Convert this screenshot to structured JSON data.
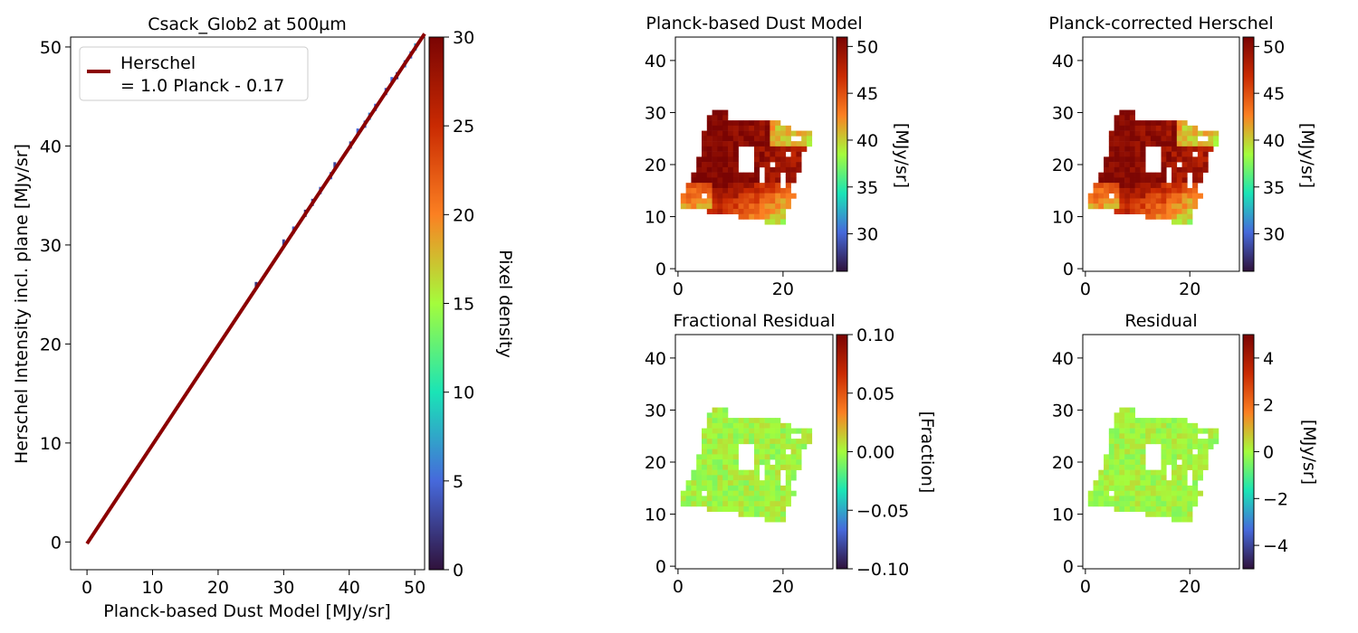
{
  "colormap_stops": [
    "#30123b",
    "#4669db",
    "#1ae4b6",
    "#a4fc3c",
    "#fb8022",
    "#c92a02",
    "#7a0403"
  ],
  "panel_bg": "#ffffff",
  "axes_color": "#000000",
  "chart_data": [
    {
      "type": "scatter",
      "title": "Csack_Glob2 at 500µm",
      "xlabel": "Planck-based Dust Model [MJy/sr]",
      "ylabel": "Herschel Intensity incl. plane [MJy/sr]",
      "xlim": [
        -2.5,
        51.5
      ],
      "ylim": [
        -2.8,
        51.0
      ],
      "xticks": [
        0,
        10,
        20,
        30,
        40,
        50
      ],
      "yticks": [
        0,
        10,
        20,
        30,
        40,
        50
      ],
      "fit_line": {
        "slope": 1.0,
        "intercept": -0.17,
        "x_range": [
          0,
          51.5
        ],
        "color": "#8b0000"
      },
      "legend": {
        "placement": "upper-left",
        "lines": [
          "Herschel",
          "= 1.0 Planck - 0.17"
        ]
      },
      "points": [
        {
          "x": 25.8,
          "y": 25.9,
          "density": 2
        },
        {
          "x": 30.0,
          "y": 30.2,
          "density": 3
        },
        {
          "x": 31.5,
          "y": 31.5,
          "density": 4
        },
        {
          "x": 33.3,
          "y": 33.2,
          "density": 2
        },
        {
          "x": 34.4,
          "y": 34.3,
          "density": 3
        },
        {
          "x": 35.6,
          "y": 35.5,
          "density": 4
        },
        {
          "x": 37.2,
          "y": 37.0,
          "density": 5
        },
        {
          "x": 37.8,
          "y": 38.0,
          "density": 3
        },
        {
          "x": 40.2,
          "y": 40.1,
          "density": 3
        },
        {
          "x": 41.3,
          "y": 41.4,
          "density": 5
        },
        {
          "x": 42.4,
          "y": 42.2,
          "density": 4
        },
        {
          "x": 43.1,
          "y": 43.0,
          "density": 6
        },
        {
          "x": 44.0,
          "y": 43.9,
          "density": 5
        },
        {
          "x": 45.6,
          "y": 45.5,
          "density": 4
        },
        {
          "x": 46.5,
          "y": 46.6,
          "density": 5
        },
        {
          "x": 47.3,
          "y": 47.1,
          "density": 3
        },
        {
          "x": 48.5,
          "y": 48.3,
          "density": 6
        },
        {
          "x": 49.4,
          "y": 49.2,
          "density": 5
        },
        {
          "x": 50.1,
          "y": 50.0,
          "density": 7
        }
      ],
      "colorbar": {
        "label": "Pixel density",
        "range": [
          0,
          30
        ],
        "ticks": [
          0,
          5,
          10,
          15,
          20,
          25,
          30
        ]
      }
    },
    {
      "type": "heatmap",
      "title": "Planck-based Dust Model",
      "xlim": [
        -0.5,
        29.5
      ],
      "ylim": [
        -0.5,
        44.5
      ],
      "xticks": [
        0,
        20
      ],
      "yticks": [
        0,
        10,
        20,
        30,
        40
      ],
      "colorbar": {
        "label": "[MJy/sr]",
        "range": [
          26,
          51
        ],
        "ticks": [
          30,
          35,
          40,
          45,
          50
        ]
      }
    },
    {
      "type": "heatmap",
      "title": "Planck-corrected Herschel",
      "xlim": [
        -0.5,
        29.5
      ],
      "ylim": [
        -0.5,
        44.5
      ],
      "xticks": [
        0,
        20
      ],
      "yticks": [
        0,
        10,
        20,
        30,
        40
      ],
      "colorbar": {
        "label": "[MJy/sr]",
        "range": [
          26,
          51
        ],
        "ticks": [
          30,
          35,
          40,
          45,
          50
        ]
      }
    },
    {
      "type": "heatmap",
      "title": "Fractional Residual",
      "xlim": [
        -0.5,
        29.5
      ],
      "ylim": [
        -0.5,
        44.5
      ],
      "xticks": [
        0,
        20
      ],
      "yticks": [
        0,
        10,
        20,
        30,
        40
      ],
      "colorbar": {
        "label": "[Fraction]",
        "range": [
          -0.1,
          0.1
        ],
        "ticks": [
          0.1,
          0.05,
          0.0,
          -0.05,
          -0.1
        ],
        "tick_labels": [
          "0.10",
          "0.05",
          "0.00",
          "−0.05",
          "−0.10"
        ]
      }
    },
    {
      "type": "heatmap",
      "title": "Residual",
      "xlim": [
        -0.5,
        29.5
      ],
      "ylim": [
        -0.5,
        44.5
      ],
      "xticks": [
        0,
        20
      ],
      "yticks": [
        0,
        10,
        20,
        30,
        40
      ],
      "colorbar": {
        "label": "[MJy/sr]",
        "range": [
          -5,
          5
        ],
        "ticks": [
          4,
          2,
          0,
          -2,
          -4
        ],
        "tick_labels": [
          "4",
          "2",
          "0",
          "−2",
          "−4"
        ]
      }
    }
  ],
  "map_rows": [
    {
      "y": 30,
      "x0": 7,
      "x1": 10
    },
    {
      "y": 29,
      "x0": 6,
      "x1": 10
    },
    {
      "y": 28,
      "x0": 6,
      "x1": 20
    },
    {
      "y": 27,
      "x0": 6,
      "x1": 22
    },
    {
      "y": 26,
      "x0": 5,
      "x1": 26
    },
    {
      "y": 25,
      "x0": 5,
      "x1": 26
    },
    {
      "y": 24,
      "x0": 5,
      "x1": 26
    },
    {
      "y": 23,
      "x0": 5,
      "x1": 25
    },
    {
      "y": 22,
      "x0": 5,
      "x1": 24
    },
    {
      "y": 21,
      "x0": 4,
      "x1": 24
    },
    {
      "y": 20,
      "x0": 4,
      "x1": 24
    },
    {
      "y": 19,
      "x0": 4,
      "x1": 24
    },
    {
      "y": 18,
      "x0": 3,
      "x1": 23
    },
    {
      "y": 17,
      "x0": 3,
      "x1": 23
    },
    {
      "y": 16,
      "x0": 2,
      "x1": 22
    },
    {
      "y": 15,
      "x0": 2,
      "x1": 22
    },
    {
      "y": 14,
      "x0": 1,
      "x1": 23
    },
    {
      "y": 13,
      "x0": 1,
      "x1": 22
    },
    {
      "y": 12,
      "x0": 1,
      "x1": 22
    },
    {
      "y": 11,
      "x0": 6,
      "x1": 21
    },
    {
      "y": 10,
      "x0": 12,
      "x1": 21
    },
    {
      "y": 9,
      "x0": 17,
      "x1": 21
    }
  ],
  "map_holes": [
    {
      "x0": 12,
      "x1": 15,
      "y0": 19,
      "y1": 24
    },
    {
      "x0": 16,
      "x1": 17,
      "y0": 17,
      "y1": 20
    },
    {
      "x0": 18,
      "x1": 19,
      "y0": 20,
      "y1": 21
    },
    {
      "x0": 20,
      "x1": 21,
      "y0": 16,
      "y1": 19
    },
    {
      "x0": 21,
      "x1": 22,
      "y0": 22,
      "y1": 23
    },
    {
      "x0": 4,
      "x1": 5,
      "y0": 23,
      "y1": 24
    },
    {
      "x0": 22,
      "x1": 24,
      "y0": 25,
      "y1": 26
    },
    {
      "x0": 5,
      "x1": 6,
      "y0": 14,
      "y1": 15
    }
  ]
}
